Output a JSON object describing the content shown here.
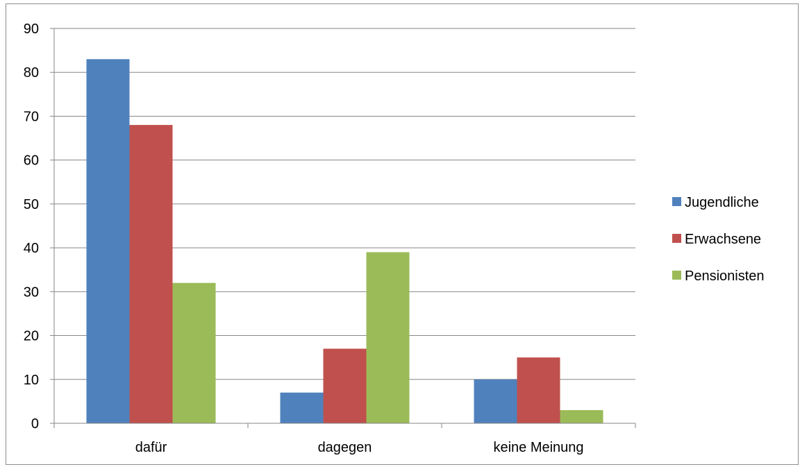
{
  "chart_data": {
    "type": "bar",
    "title": "",
    "xlabel": "",
    "ylabel": "",
    "categories": [
      "dafür",
      "dagegen",
      "keine Meinung"
    ],
    "series": [
      {
        "name": "Jugendliche",
        "values": [
          83,
          7,
          10
        ],
        "color": "#4f81bd"
      },
      {
        "name": "Erwachsene",
        "values": [
          68,
          17,
          15
        ],
        "color": "#c0504d"
      },
      {
        "name": "Pensionisten",
        "values": [
          32,
          39,
          3
        ],
        "color": "#9bbb59"
      }
    ],
    "ylim": [
      0,
      90
    ],
    "yticks": [
      0,
      10,
      20,
      30,
      40,
      50,
      60,
      70,
      80,
      90
    ],
    "grid": true,
    "legend_position": "right",
    "colors": {
      "gridline": "#868686",
      "axis": "#868686",
      "frame": "#8c8c8c"
    }
  }
}
